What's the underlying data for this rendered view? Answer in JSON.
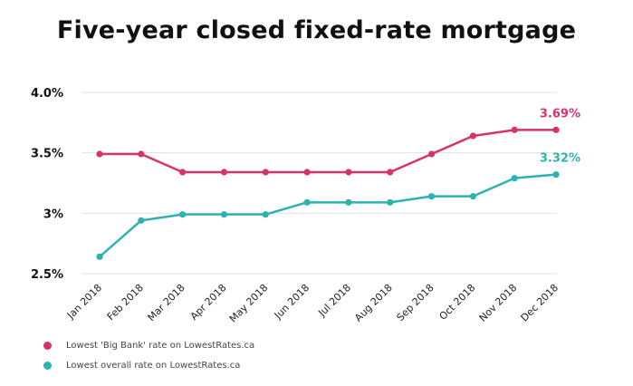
{
  "chart_data": {
    "type": "line",
    "title": "Five-year closed fixed-rate mortgage",
    "categories": [
      "Jan 2018",
      "Feb 2018",
      "Mar 2018",
      "Apr 2018",
      "May 2018",
      "Jun 2018",
      "Jul 2018",
      "Aug 2018",
      "Sep 2018",
      "Oct 2018",
      "Nov 2018",
      "Dec 2018"
    ],
    "yticks": [
      "2.5%",
      "3%",
      "3.5%",
      "4.0%"
    ],
    "ytick_values": [
      2.5,
      3.0,
      3.5,
      4.0
    ],
    "ylim": [
      2.5,
      4.0
    ],
    "grid": true,
    "legend_position": "bottom-left",
    "series": [
      {
        "name": "Lowest 'Big Bank' rate on LowestRates.ca",
        "color": "#d6336c",
        "values": [
          3.49,
          3.49,
          3.34,
          3.34,
          3.34,
          3.34,
          3.34,
          3.34,
          3.49,
          3.64,
          3.69,
          3.69
        ],
        "end_label": "3.69%"
      },
      {
        "name": "Lowest overall rate on LowestRates.ca",
        "color": "#2bb3b1",
        "values": [
          2.64,
          2.94,
          2.99,
          2.99,
          2.99,
          3.09,
          3.09,
          3.09,
          3.14,
          3.14,
          3.29,
          3.32
        ],
        "end_label": "3.32%"
      }
    ]
  }
}
